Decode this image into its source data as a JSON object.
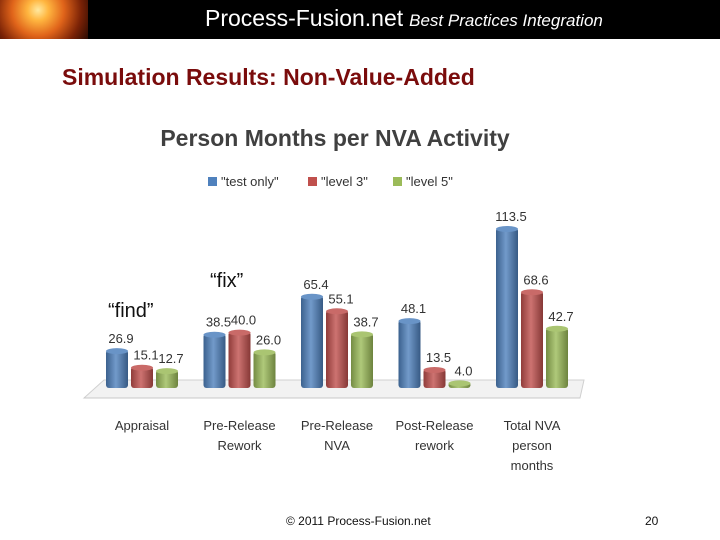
{
  "header": {
    "brand": "Process-Fusion.net",
    "tagline": "Best Practices Integration"
  },
  "slide": {
    "title": "Simulation Results: Non-Value-Added",
    "annotations": {
      "find": "“find”",
      "fix": "“fix”"
    },
    "footer": "© 2011 Process-Fusion.net",
    "page_number": "20"
  },
  "colors": {
    "series": [
      "#4f81bd",
      "#c0504d",
      "#9bbb59"
    ],
    "title": "#7a0c0c"
  },
  "chart_data": {
    "type": "bar",
    "title": "Person Months per NVA Activity",
    "categories": [
      [
        "Appraisal"
      ],
      [
        "Pre-Release",
        "Rework"
      ],
      [
        "Pre-Release",
        "NVA"
      ],
      [
        "Post-Release",
        "rework"
      ],
      [
        "Total NVA",
        "person",
        "months"
      ]
    ],
    "series": [
      {
        "name": "\"test only\"",
        "values": [
          26.9,
          38.5,
          65.4,
          48.1,
          113.5
        ]
      },
      {
        "name": "\"level 3\"",
        "values": [
          15.1,
          40.0,
          55.1,
          13.5,
          68.6
        ]
      },
      {
        "name": "\"level  5\"",
        "values": [
          12.7,
          26.0,
          38.7,
          4.0,
          42.7
        ]
      }
    ],
    "data_labels": [
      [
        "26.9",
        "38.5",
        "65.4",
        "48.1",
        "113.5"
      ],
      [
        "15.1",
        "40.0",
        "55.1",
        "13.5",
        "68.6"
      ],
      [
        "12.7",
        "26.0",
        "38.7",
        "4.0",
        "42.7"
      ]
    ],
    "xlabel": "",
    "ylabel": "",
    "ylim": [
      0,
      120
    ],
    "grid": false,
    "legend": "top-center"
  }
}
